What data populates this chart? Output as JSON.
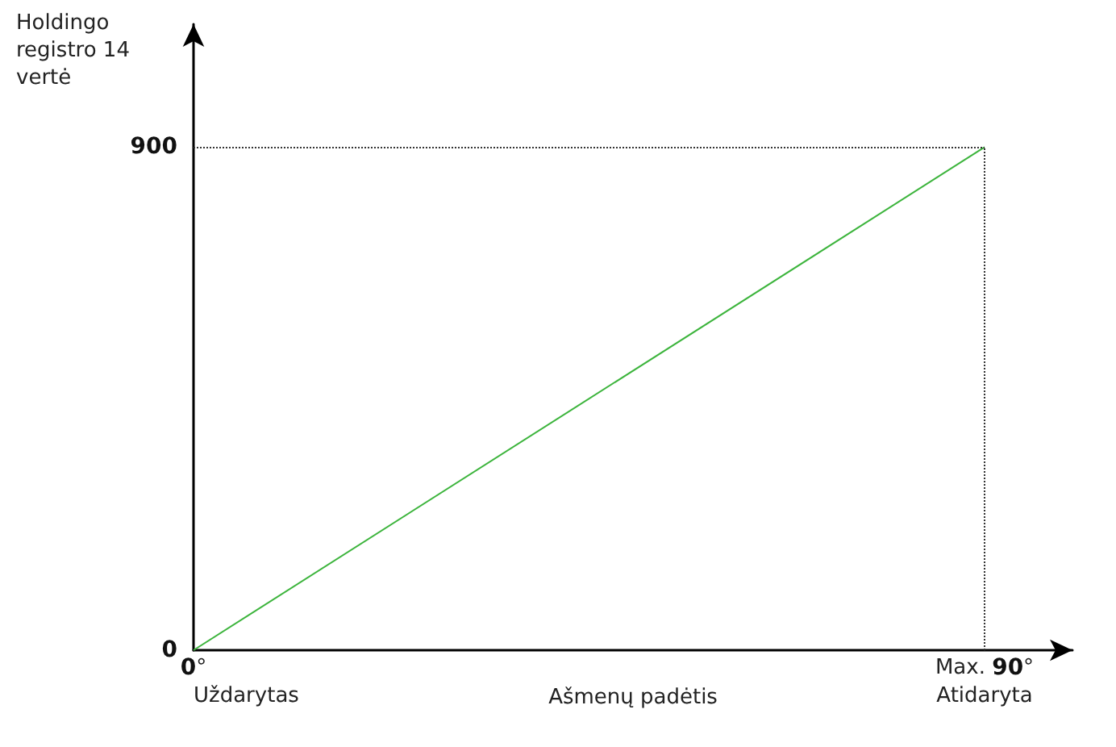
{
  "chart_data": {
    "type": "line",
    "ylabel": "Holdingo registro 14 vertė",
    "xlabel": "Ašmenų padėtis",
    "x": [
      0,
      90
    ],
    "series": [
      {
        "color": "#3cb43c",
        "values": [
          0,
          900
        ]
      }
    ],
    "xlim": [
      0,
      100
    ],
    "ylim": [
      0,
      1120
    ],
    "xticks": [
      {
        "value": 0,
        "label": "0°"
      },
      {
        "value": 90,
        "label": "Max. 90°"
      }
    ],
    "yticks": [
      0,
      900
    ],
    "ref_lines": [
      {
        "axis": "y",
        "value": 900,
        "color": "#333333",
        "line_style": "dotted"
      },
      {
        "axis": "x",
        "value": 90,
        "color": "#333333",
        "line_style": "dotted"
      }
    ],
    "annotations": [
      "Uždarytas",
      "Atidaryta"
    ],
    "marker": "none",
    "grid": false
  }
}
